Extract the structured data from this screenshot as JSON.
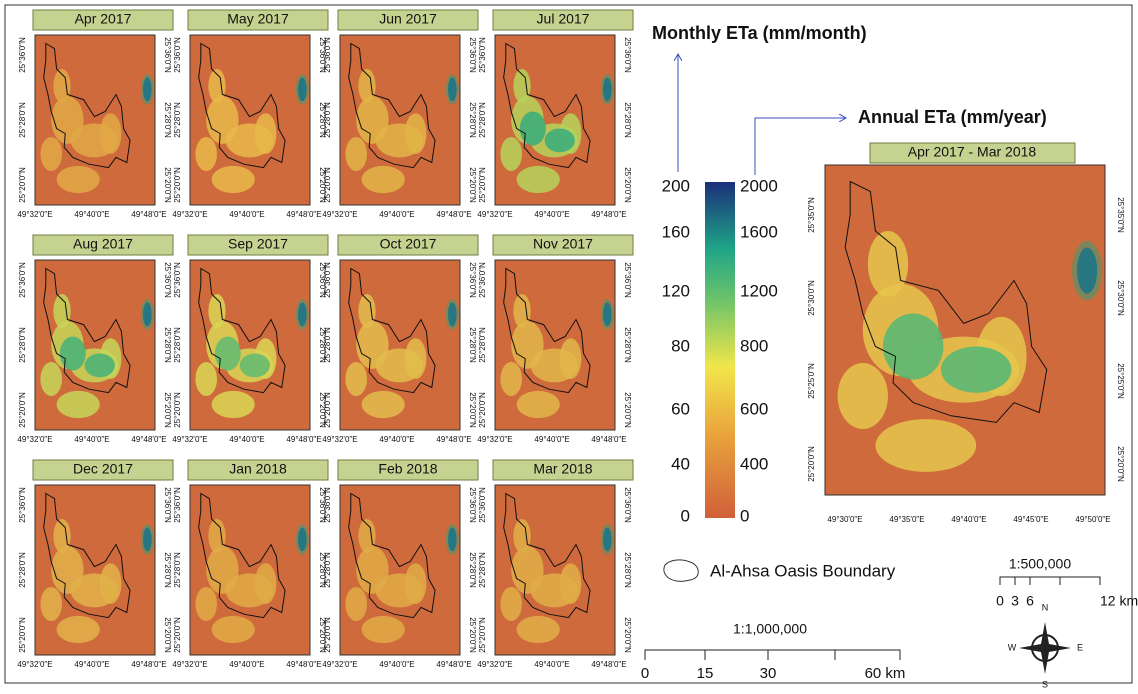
{
  "monthly": {
    "title": "Monthly ETa (mm/month)",
    "panels": [
      "Apr 2017",
      "May 2017",
      "Jun 2017",
      "Jul 2017",
      "Aug 2017",
      "Sep 2017",
      "Oct 2017",
      "Nov 2017",
      "Dec 2017",
      "Jan 2018",
      "Feb 2018",
      "Mar 2018"
    ],
    "lat_labels": [
      "25°36'0\"N",
      "25°28'0\"N",
      "25°20'0\"N"
    ],
    "lon_labels": [
      "49°32'0\"E",
      "49°40'0\"E",
      "49°48'0\"E"
    ]
  },
  "annual": {
    "title": "Annual ETa (mm/year)",
    "panel_title": "Apr 2017 - Mar 2018",
    "lat_labels": [
      "25°35'0\"N",
      "25°30'0\"N",
      "25°25'0\"N",
      "25°20'0\"N"
    ],
    "lon_labels": [
      "49°30'0\"E",
      "49°35'0\"E",
      "49°40'0\"E",
      "49°45'0\"E",
      "49°50'0\"E"
    ]
  },
  "colorbar": {
    "monthly_labels": [
      200,
      160,
      120,
      80,
      60,
      40,
      0
    ],
    "annual_labels": [
      2000,
      1600,
      1200,
      800,
      600,
      400,
      0
    ]
  },
  "boundary_legend": "Al-Ahsa Oasis Boundary",
  "scale_small": {
    "ratio": "1:500,000",
    "labels": [
      "0",
      "3",
      "6",
      "12 km"
    ]
  },
  "scale_large": {
    "ratio": "1:1,000,000",
    "labels": [
      "0",
      "15",
      "30",
      "60 km"
    ]
  },
  "compass": {
    "n": "N",
    "w": "W",
    "e": "E",
    "s": "S"
  }
}
